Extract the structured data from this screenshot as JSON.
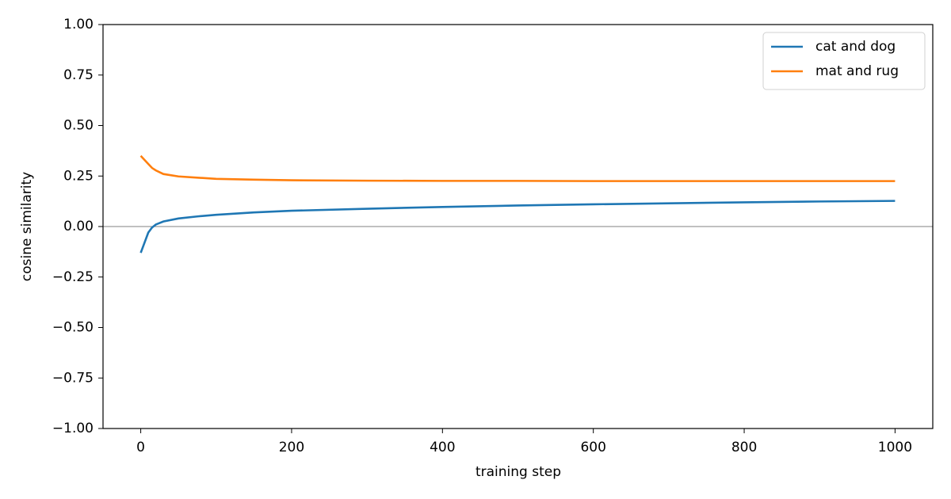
{
  "chart_data": {
    "type": "line",
    "xlabel": "training step",
    "ylabel": "cosine similarity",
    "x": [
      0,
      5,
      10,
      15,
      20,
      30,
      50,
      75,
      100,
      150,
      200,
      300,
      400,
      500,
      600,
      700,
      800,
      900,
      1000
    ],
    "series": [
      {
        "name": "cat and dog",
        "color": "#1f77b4",
        "values": [
          -0.13,
          -0.08,
          -0.03,
          -0.005,
          0.01,
          0.025,
          0.04,
          0.05,
          0.058,
          0.07,
          0.078,
          0.088,
          0.097,
          0.104,
          0.11,
          0.115,
          0.12,
          0.124,
          0.127
        ]
      },
      {
        "name": "mat and rug",
        "color": "#ff7f0e",
        "values": [
          0.35,
          0.33,
          0.31,
          0.29,
          0.278,
          0.26,
          0.248,
          0.242,
          0.236,
          0.232,
          0.229,
          0.227,
          0.226,
          0.226,
          0.225,
          0.225,
          0.225,
          0.225,
          0.225
        ]
      }
    ],
    "reference_line": 0,
    "xlim": [
      -50,
      1050
    ],
    "ylim": [
      -1,
      1
    ],
    "xticks": [
      0,
      200,
      400,
      600,
      800,
      1000
    ],
    "yticks": [
      {
        "value": -1,
        "label": "−1.00"
      },
      {
        "value": -0.75,
        "label": "−0.75"
      },
      {
        "value": -0.5,
        "label": "−0.50"
      },
      {
        "value": -0.25,
        "label": "−0.25"
      },
      {
        "value": 0,
        "label": "0.00"
      },
      {
        "value": 0.25,
        "label": "0.25"
      },
      {
        "value": 0.5,
        "label": "0.50"
      },
      {
        "value": 0.75,
        "label": "0.75"
      },
      {
        "value": 1,
        "label": "1.00"
      }
    ],
    "legend": "upper right",
    "grid": false
  }
}
